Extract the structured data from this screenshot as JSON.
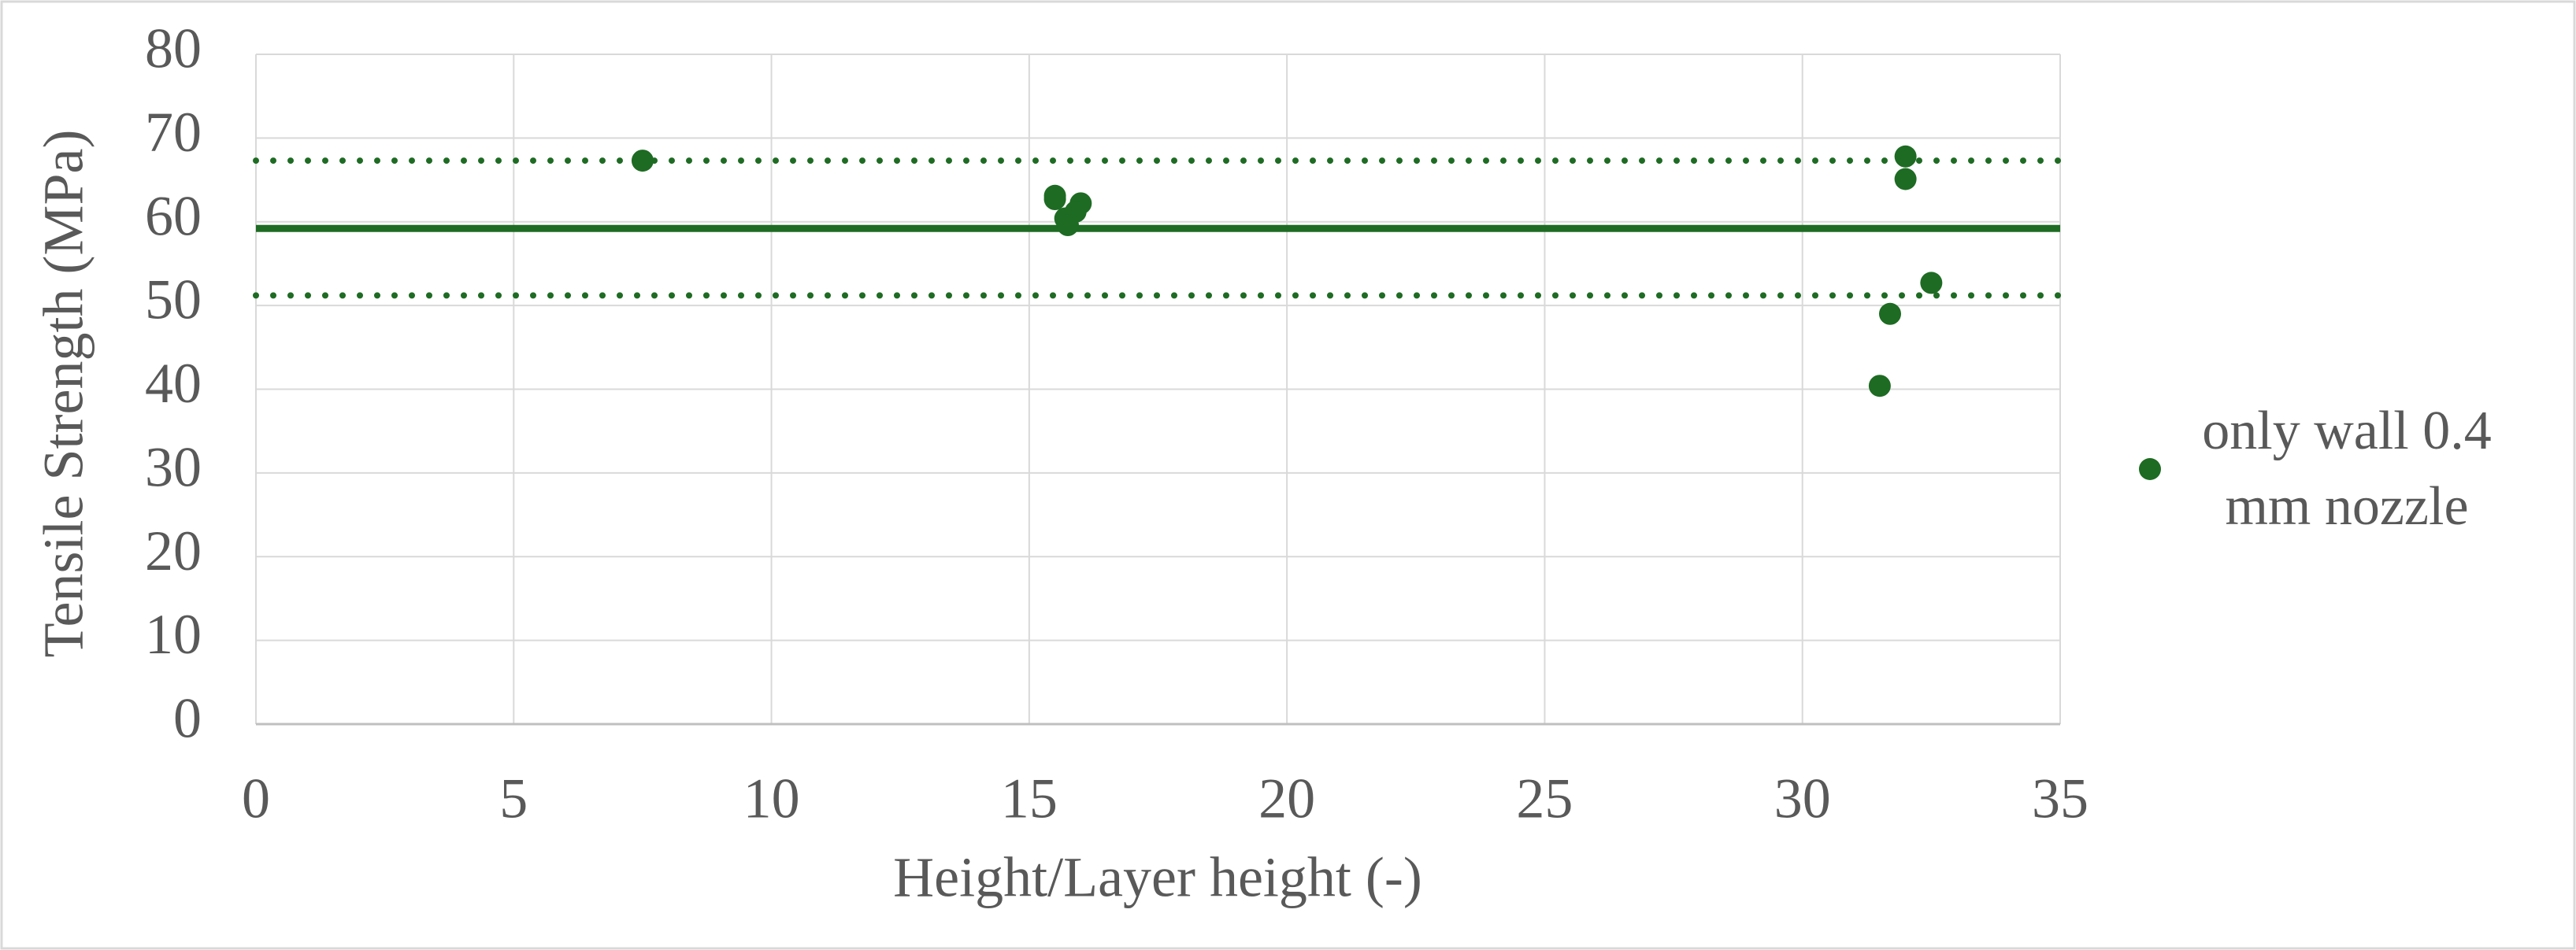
{
  "chart_data": {
    "type": "scatter",
    "x_label": "Height/Layer height (-)",
    "y_label": "Tensile Strength (MPa)",
    "xlim": [
      0,
      35
    ],
    "xticks": [
      0,
      5,
      10,
      15,
      20,
      25,
      30,
      35
    ],
    "ylim": [
      0,
      80
    ],
    "yticks": [
      0,
      10,
      20,
      30,
      40,
      50,
      60,
      70,
      80
    ],
    "grid": true,
    "legend": "right",
    "series": [
      {
        "name": "only wall 0.4 mm nozzle",
        "color": "#1e6b23",
        "x": [
          7.5,
          15.5,
          15.5,
          16.0,
          15.9,
          15.7,
          15.75,
          32.0,
          32.0,
          32.5,
          31.7,
          31.5
        ],
        "values": [
          67.3,
          63.1,
          62.7,
          62.2,
          61.2,
          60.4,
          59.6,
          67.8,
          65.1,
          52.7,
          49.0,
          40.4
        ]
      }
    ],
    "reference_lines": [
      {
        "value": 59.2,
        "style": "solid",
        "color": "#1e6b23"
      },
      {
        "value": 67.3,
        "style": "dotted",
        "color": "#1e6b23"
      },
      {
        "value": 51.2,
        "style": "dotted",
        "color": "#1e6b23"
      }
    ]
  }
}
